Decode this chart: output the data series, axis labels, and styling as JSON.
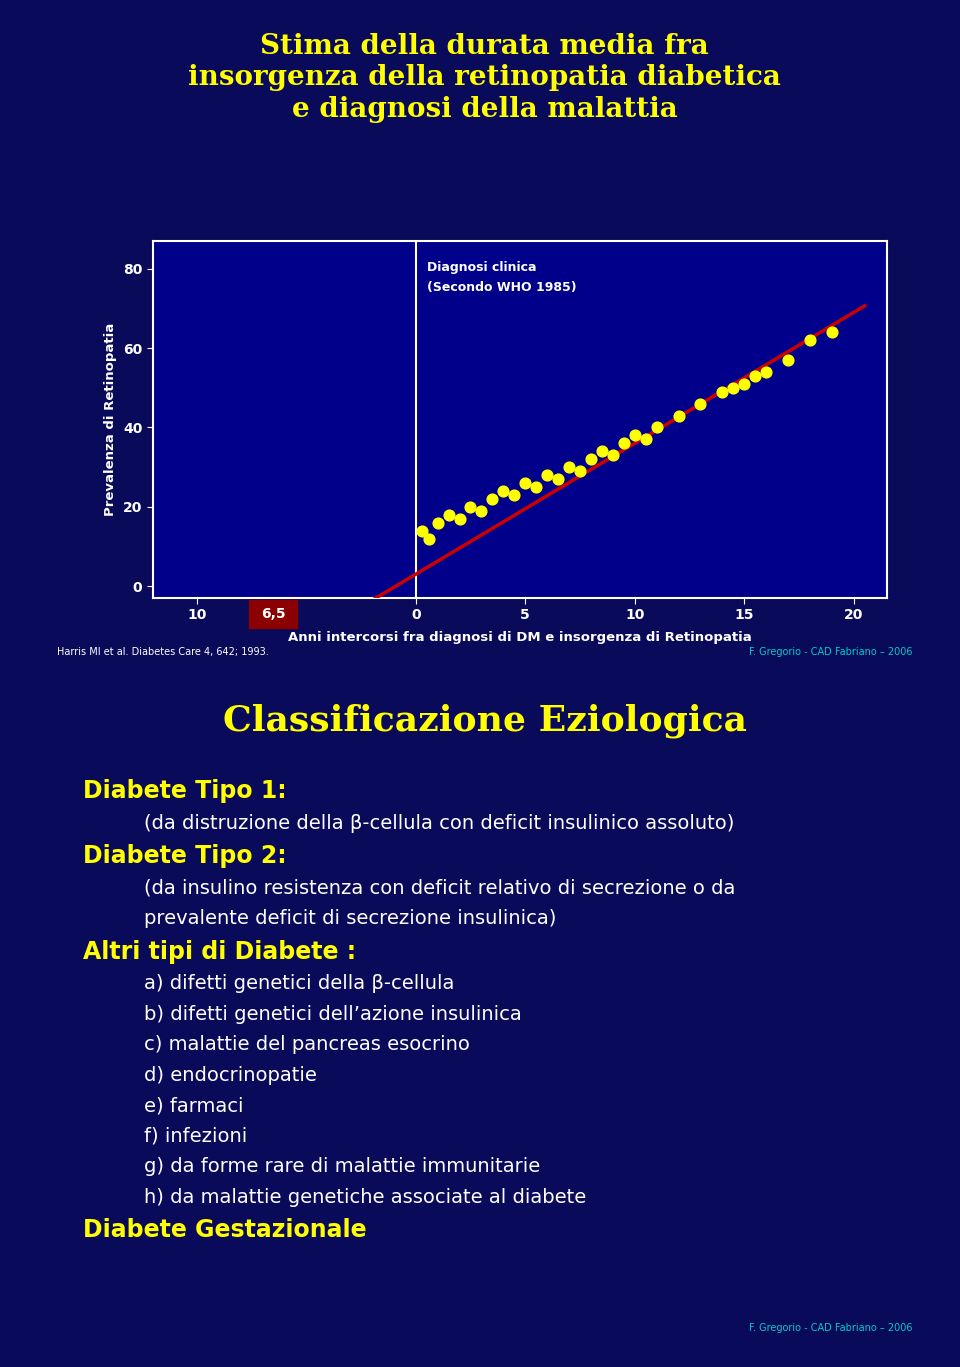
{
  "overall_bg": "#1a1a6e",
  "slide1_bg": "#00008B",
  "slide2_bg": "#00006B",
  "title_color": "#FFFF00",
  "title_text": "Stima della durata media fra\ninsorgenza della retinopatia diabetica\ne diagnosi della malattia",
  "title_fontsize": 20,
  "scatter_x": [
    0.3,
    0.6,
    1.0,
    1.5,
    2.0,
    2.5,
    3.0,
    3.5,
    4.0,
    4.5,
    5.0,
    5.5,
    6.0,
    6.5,
    7.0,
    7.5,
    8.0,
    8.5,
    9.0,
    9.5,
    10.0,
    10.5,
    11.0,
    12.0,
    13.0,
    14.0,
    14.5,
    15.0,
    15.5,
    16.0,
    17.0,
    18.0,
    19.0
  ],
  "scatter_y": [
    14,
    12,
    16,
    18,
    17,
    20,
    19,
    22,
    24,
    23,
    26,
    25,
    28,
    27,
    30,
    29,
    32,
    34,
    33,
    36,
    38,
    37,
    40,
    43,
    46,
    49,
    50,
    51,
    53,
    54,
    57,
    62,
    64
  ],
  "scatter_color": "#FFFF00",
  "scatter_size": 60,
  "line_color": "#CC0000",
  "line_width": 2.5,
  "line_slope": 3.3,
  "line_intercept": 3.0,
  "line_xstart": -7.5,
  "line_xend": 20.5,
  "vline_color": "white",
  "vline_label1": "Diagnosi clinica",
  "vline_label2": "(Secondo WHO 1985)",
  "xlabel": "Anni intercorsi fra diagnosi di DM e insorgenza di Retinopatia",
  "ylabel": "Prevalenza di Retinopatia",
  "xtick_positions": [
    -10,
    -6.5,
    0,
    5,
    10,
    15,
    20
  ],
  "xtick_labels_visible": [
    "10",
    "0",
    "5",
    "10",
    "15",
    "20"
  ],
  "xtick_positions_visible": [
    -10,
    0,
    5,
    10,
    15,
    20
  ],
  "yticks": [
    0,
    20,
    40,
    60,
    80
  ],
  "xlim": [
    -12,
    21.5
  ],
  "ylim": [
    -3,
    87
  ],
  "highlight_box_color": "#8B0000",
  "axis_label_color": "white",
  "tick_color": "white",
  "footnote1": "Harris MI et al. Diabetes Care 4, 642; 1993.",
  "footnote2": "F. Gregorio - CAD Fabriano – 2006",
  "slide2_title": "Classificazione Eziologica",
  "slide2_title_color": "#FFFF00",
  "slide2_title_fontsize": 26,
  "lines": [
    {
      "text": "Diabete Tipo 1:",
      "color": "#FFFF00",
      "indent": 0,
      "bold": true,
      "fontsize": 17
    },
    {
      "text": "(da distruzione della β-cellula con deficit insulinico assoluto)",
      "color": "white",
      "indent": 1,
      "bold": false,
      "fontsize": 14
    },
    {
      "text": "Diabete Tipo 2:",
      "color": "#FFFF00",
      "indent": 0,
      "bold": true,
      "fontsize": 17
    },
    {
      "text": "(da insulino resistenza con deficit relativo di secrezione o da",
      "color": "white",
      "indent": 1,
      "bold": false,
      "fontsize": 14
    },
    {
      "text": "prevalente deficit di secrezione insulinica)",
      "color": "white",
      "indent": 1,
      "bold": false,
      "fontsize": 14
    },
    {
      "text": "Altri tipi di Diabete :",
      "color": "#FFFF00",
      "indent": 0,
      "bold": true,
      "fontsize": 17
    },
    {
      "text": "a) difetti genetici della β-cellula",
      "color": "white",
      "indent": 1,
      "bold": false,
      "fontsize": 14
    },
    {
      "text": "b) difetti genetici dell’azione insulinica",
      "color": "white",
      "indent": 1,
      "bold": false,
      "fontsize": 14
    },
    {
      "text": "c) malattie del pancreas esocrino",
      "color": "white",
      "indent": 1,
      "bold": false,
      "fontsize": 14
    },
    {
      "text": "d) endocrinopatie",
      "color": "white",
      "indent": 1,
      "bold": false,
      "fontsize": 14
    },
    {
      "text": "e) farmaci",
      "color": "white",
      "indent": 1,
      "bold": false,
      "fontsize": 14
    },
    {
      "text": "f) infezioni",
      "color": "white",
      "indent": 1,
      "bold": false,
      "fontsize": 14
    },
    {
      "text": "g) da forme rare di malattie immunitarie",
      "color": "white",
      "indent": 1,
      "bold": false,
      "fontsize": 14
    },
    {
      "text": "h) da malattie genetiche associate al diabete",
      "color": "white",
      "indent": 1,
      "bold": false,
      "fontsize": 14
    },
    {
      "text": "Diabete Gestazionale",
      "color": "#FFFF00",
      "indent": 0,
      "bold": true,
      "fontsize": 17
    }
  ],
  "slide2_footnote": "F. Gregorio - CAD Fabriano – 2006"
}
